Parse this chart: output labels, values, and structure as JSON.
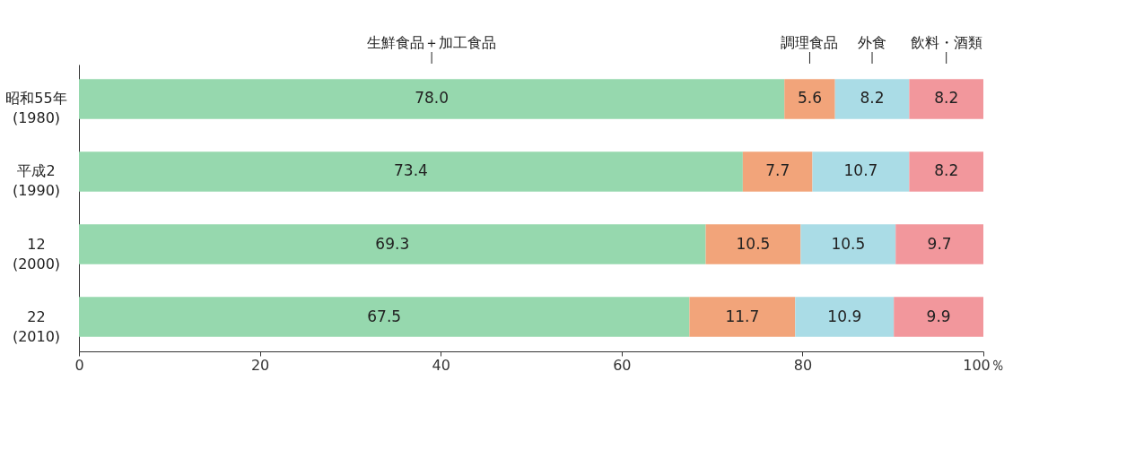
{
  "chart_data": {
    "type": "bar",
    "orientation": "horizontal",
    "stacked": true,
    "categories": [
      "昭和55年\n(1980)",
      "平成2\n(1990)",
      "12\n(2000)",
      "22\n(2010)"
    ],
    "series": [
      {
        "name": "生鮮食品＋加工食品",
        "color": "#96d8ae",
        "values": [
          78.0,
          73.4,
          69.3,
          67.5
        ],
        "value_labels": [
          "78.0",
          "73.4",
          "69.3",
          "67.5"
        ]
      },
      {
        "name": "調理食品",
        "color": "#f2a47a",
        "values": [
          5.6,
          7.7,
          10.5,
          11.7
        ],
        "value_labels": [
          "5.6",
          "7.7",
          "10.5",
          "11.7"
        ]
      },
      {
        "name": "外食",
        "color": "#aadce6",
        "values": [
          8.2,
          10.7,
          10.5,
          10.9
        ],
        "value_labels": [
          "8.2",
          "10.7",
          "10.5",
          "10.9"
        ]
      },
      {
        "name": "飲料・酒類",
        "color": "#f2979c",
        "values": [
          8.2,
          8.2,
          9.7,
          9.9
        ],
        "value_labels": [
          "8.2",
          "8.2",
          "9.7",
          "9.9"
        ]
      }
    ],
    "xlim": [
      0,
      100
    ],
    "xticks": [
      0,
      20,
      40,
      60,
      80,
      {
        "value": 100,
        "label": "100％"
      }
    ],
    "data_labels": true,
    "grid": false,
    "legend": false
  }
}
